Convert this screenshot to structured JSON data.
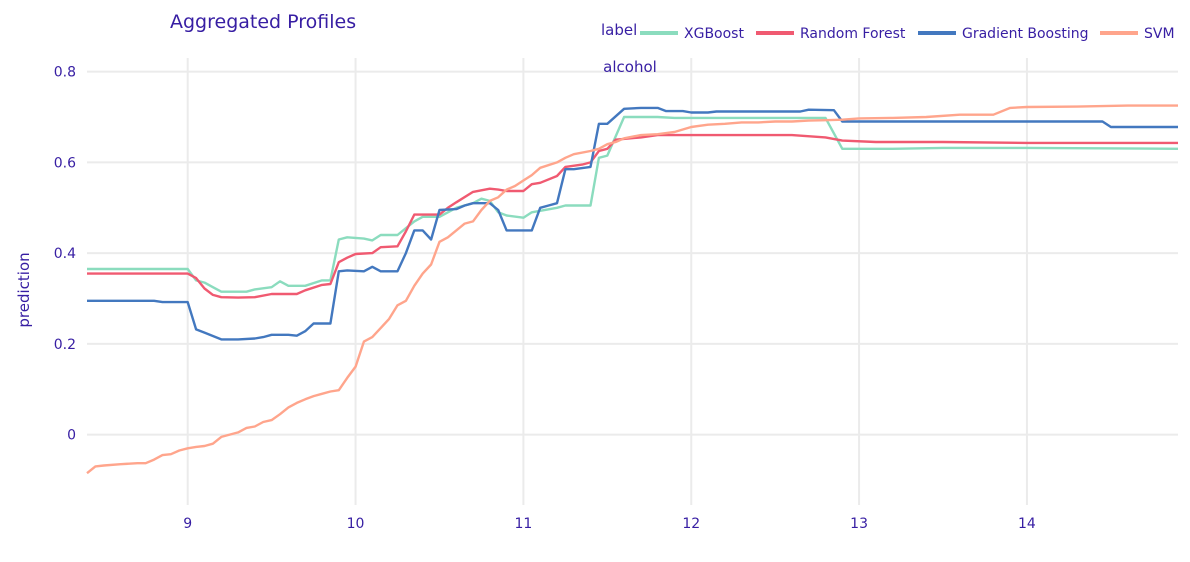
{
  "chart_data": {
    "type": "line",
    "title": "Aggregated Profiles",
    "facet_label": "alcohol",
    "xlabel": "",
    "ylabel": "prediction",
    "xlim": [
      8.4,
      14.9
    ],
    "ylim": [
      -0.155,
      0.83
    ],
    "x_ticks": [
      9,
      10,
      11,
      12,
      13,
      14
    ],
    "x_tick_labels": [
      "9",
      "10",
      "11",
      "12",
      "13",
      "14"
    ],
    "y_ticks": [
      0,
      0.2,
      0.4,
      0.6,
      0.8
    ],
    "y_tick_labels": [
      "0",
      "0.2",
      "0.4",
      "0.6",
      "0.8"
    ],
    "grid": true,
    "legend": {
      "title": "label",
      "placement": "top-right",
      "orientation": "horizontal"
    },
    "series": [
      {
        "name": "XGBoost",
        "color": "#8bdcbe",
        "points": [
          [
            8.4,
            0.365
          ],
          [
            8.8,
            0.365
          ],
          [
            9.0,
            0.365
          ],
          [
            9.05,
            0.34
          ],
          [
            9.1,
            0.335
          ],
          [
            9.15,
            0.325
          ],
          [
            9.2,
            0.315
          ],
          [
            9.3,
            0.315
          ],
          [
            9.35,
            0.315
          ],
          [
            9.4,
            0.32
          ],
          [
            9.5,
            0.325
          ],
          [
            9.55,
            0.338
          ],
          [
            9.6,
            0.328
          ],
          [
            9.7,
            0.328
          ],
          [
            9.8,
            0.34
          ],
          [
            9.85,
            0.34
          ],
          [
            9.9,
            0.43
          ],
          [
            9.95,
            0.435
          ],
          [
            10.05,
            0.432
          ],
          [
            10.1,
            0.428
          ],
          [
            10.15,
            0.44
          ],
          [
            10.25,
            0.44
          ],
          [
            10.3,
            0.455
          ],
          [
            10.35,
            0.47
          ],
          [
            10.4,
            0.48
          ],
          [
            10.5,
            0.48
          ],
          [
            10.55,
            0.49
          ],
          [
            10.6,
            0.5
          ],
          [
            10.7,
            0.51
          ],
          [
            10.75,
            0.52
          ],
          [
            10.8,
            0.515
          ],
          [
            10.85,
            0.49
          ],
          [
            10.9,
            0.483
          ],
          [
            11.0,
            0.478
          ],
          [
            11.05,
            0.49
          ],
          [
            11.2,
            0.5
          ],
          [
            11.25,
            0.505
          ],
          [
            11.3,
            0.505
          ],
          [
            11.4,
            0.505
          ],
          [
            11.45,
            0.61
          ],
          [
            11.5,
            0.615
          ],
          [
            11.6,
            0.7
          ],
          [
            11.8,
            0.7
          ],
          [
            11.9,
            0.698
          ],
          [
            12.2,
            0.698
          ],
          [
            12.8,
            0.698
          ],
          [
            12.9,
            0.63
          ],
          [
            13.2,
            0.63
          ],
          [
            13.5,
            0.632
          ],
          [
            14.0,
            0.632
          ],
          [
            14.9,
            0.63
          ]
        ]
      },
      {
        "name": "Random Forest",
        "color": "#f05a71",
        "points": [
          [
            8.4,
            0.355
          ],
          [
            9.0,
            0.355
          ],
          [
            9.05,
            0.345
          ],
          [
            9.1,
            0.322
          ],
          [
            9.15,
            0.308
          ],
          [
            9.2,
            0.303
          ],
          [
            9.3,
            0.302
          ],
          [
            9.4,
            0.303
          ],
          [
            9.5,
            0.31
          ],
          [
            9.6,
            0.31
          ],
          [
            9.65,
            0.31
          ],
          [
            9.7,
            0.318
          ],
          [
            9.8,
            0.33
          ],
          [
            9.85,
            0.332
          ],
          [
            9.9,
            0.38
          ],
          [
            9.95,
            0.39
          ],
          [
            10.0,
            0.398
          ],
          [
            10.1,
            0.4
          ],
          [
            10.15,
            0.413
          ],
          [
            10.25,
            0.415
          ],
          [
            10.3,
            0.448
          ],
          [
            10.35,
            0.485
          ],
          [
            10.5,
            0.485
          ],
          [
            10.55,
            0.5
          ],
          [
            10.6,
            0.512
          ],
          [
            10.7,
            0.535
          ],
          [
            10.8,
            0.542
          ],
          [
            10.85,
            0.54
          ],
          [
            10.9,
            0.537
          ],
          [
            11.0,
            0.537
          ],
          [
            11.05,
            0.552
          ],
          [
            11.1,
            0.555
          ],
          [
            11.2,
            0.57
          ],
          [
            11.25,
            0.59
          ],
          [
            11.35,
            0.595
          ],
          [
            11.4,
            0.6
          ],
          [
            11.45,
            0.625
          ],
          [
            11.5,
            0.63
          ],
          [
            11.55,
            0.65
          ],
          [
            11.7,
            0.655
          ],
          [
            11.8,
            0.66
          ],
          [
            12.0,
            0.66
          ],
          [
            12.6,
            0.66
          ],
          [
            12.8,
            0.655
          ],
          [
            12.9,
            0.648
          ],
          [
            13.1,
            0.645
          ],
          [
            13.5,
            0.645
          ],
          [
            14.0,
            0.643
          ],
          [
            14.9,
            0.643
          ]
        ]
      },
      {
        "name": "Gradient Boosting",
        "color": "#4378bf",
        "points": [
          [
            8.4,
            0.295
          ],
          [
            8.8,
            0.295
          ],
          [
            8.85,
            0.292
          ],
          [
            9.0,
            0.292
          ],
          [
            9.05,
            0.232
          ],
          [
            9.1,
            0.225
          ],
          [
            9.2,
            0.21
          ],
          [
            9.3,
            0.21
          ],
          [
            9.4,
            0.212
          ],
          [
            9.45,
            0.215
          ],
          [
            9.5,
            0.22
          ],
          [
            9.6,
            0.22
          ],
          [
            9.65,
            0.218
          ],
          [
            9.7,
            0.228
          ],
          [
            9.75,
            0.245
          ],
          [
            9.85,
            0.245
          ],
          [
            9.9,
            0.36
          ],
          [
            9.95,
            0.362
          ],
          [
            10.05,
            0.36
          ],
          [
            10.1,
            0.37
          ],
          [
            10.15,
            0.36
          ],
          [
            10.25,
            0.36
          ],
          [
            10.3,
            0.4
          ],
          [
            10.35,
            0.45
          ],
          [
            10.4,
            0.45
          ],
          [
            10.45,
            0.43
          ],
          [
            10.5,
            0.495
          ],
          [
            10.6,
            0.497
          ],
          [
            10.65,
            0.505
          ],
          [
            10.7,
            0.51
          ],
          [
            10.8,
            0.51
          ],
          [
            10.85,
            0.495
          ],
          [
            10.9,
            0.45
          ],
          [
            11.05,
            0.45
          ],
          [
            11.1,
            0.5
          ],
          [
            11.15,
            0.505
          ],
          [
            11.2,
            0.51
          ],
          [
            11.25,
            0.585
          ],
          [
            11.3,
            0.585
          ],
          [
            11.4,
            0.59
          ],
          [
            11.45,
            0.685
          ],
          [
            11.5,
            0.685
          ],
          [
            11.6,
            0.718
          ],
          [
            11.7,
            0.72
          ],
          [
            11.8,
            0.72
          ],
          [
            11.85,
            0.713
          ],
          [
            11.95,
            0.713
          ],
          [
            12.0,
            0.71
          ],
          [
            12.1,
            0.71
          ],
          [
            12.15,
            0.712
          ],
          [
            12.6,
            0.712
          ],
          [
            12.65,
            0.712
          ],
          [
            12.7,
            0.716
          ],
          [
            12.85,
            0.715
          ],
          [
            12.9,
            0.69
          ],
          [
            13.2,
            0.69
          ],
          [
            14.0,
            0.69
          ],
          [
            14.45,
            0.69
          ],
          [
            14.5,
            0.678
          ],
          [
            14.9,
            0.678
          ]
        ]
      },
      {
        "name": "SVM",
        "color": "#ffa58c",
        "points": [
          [
            8.4,
            -0.085
          ],
          [
            8.45,
            -0.07
          ],
          [
            8.5,
            -0.068
          ],
          [
            8.6,
            -0.065
          ],
          [
            8.7,
            -0.063
          ],
          [
            8.75,
            -0.063
          ],
          [
            8.8,
            -0.055
          ],
          [
            8.85,
            -0.045
          ],
          [
            8.9,
            -0.043
          ],
          [
            8.95,
            -0.035
          ],
          [
            9.0,
            -0.03
          ],
          [
            9.05,
            -0.027
          ],
          [
            9.1,
            -0.025
          ],
          [
            9.15,
            -0.02
          ],
          [
            9.2,
            -0.005
          ],
          [
            9.3,
            0.005
          ],
          [
            9.35,
            0.015
          ],
          [
            9.4,
            0.018
          ],
          [
            9.45,
            0.028
          ],
          [
            9.5,
            0.032
          ],
          [
            9.55,
            0.045
          ],
          [
            9.6,
            0.06
          ],
          [
            9.65,
            0.07
          ],
          [
            9.7,
            0.078
          ],
          [
            9.75,
            0.085
          ],
          [
            9.8,
            0.09
          ],
          [
            9.85,
            0.095
          ],
          [
            9.9,
            0.098
          ],
          [
            9.95,
            0.125
          ],
          [
            10.0,
            0.15
          ],
          [
            10.05,
            0.205
          ],
          [
            10.1,
            0.215
          ],
          [
            10.2,
            0.255
          ],
          [
            10.25,
            0.285
          ],
          [
            10.3,
            0.295
          ],
          [
            10.35,
            0.328
          ],
          [
            10.4,
            0.355
          ],
          [
            10.45,
            0.375
          ],
          [
            10.5,
            0.425
          ],
          [
            10.55,
            0.435
          ],
          [
            10.65,
            0.465
          ],
          [
            10.7,
            0.47
          ],
          [
            10.75,
            0.495
          ],
          [
            10.8,
            0.515
          ],
          [
            10.85,
            0.523
          ],
          [
            10.9,
            0.54
          ],
          [
            10.95,
            0.548
          ],
          [
            11.0,
            0.56
          ],
          [
            11.05,
            0.572
          ],
          [
            11.1,
            0.588
          ],
          [
            11.2,
            0.6
          ],
          [
            11.25,
            0.61
          ],
          [
            11.3,
            0.618
          ],
          [
            11.4,
            0.625
          ],
          [
            11.45,
            0.63
          ],
          [
            11.5,
            0.64
          ],
          [
            11.55,
            0.645
          ],
          [
            11.6,
            0.653
          ],
          [
            11.7,
            0.66
          ],
          [
            11.8,
            0.662
          ],
          [
            11.9,
            0.667
          ],
          [
            12.0,
            0.678
          ],
          [
            12.1,
            0.683
          ],
          [
            12.2,
            0.685
          ],
          [
            12.3,
            0.688
          ],
          [
            12.4,
            0.688
          ],
          [
            12.5,
            0.69
          ],
          [
            12.6,
            0.69
          ],
          [
            12.7,
            0.692
          ],
          [
            12.8,
            0.693
          ],
          [
            12.9,
            0.694
          ],
          [
            13.0,
            0.697
          ],
          [
            13.2,
            0.698
          ],
          [
            13.4,
            0.7
          ],
          [
            13.6,
            0.705
          ],
          [
            13.8,
            0.705
          ],
          [
            13.9,
            0.72
          ],
          [
            14.0,
            0.722
          ],
          [
            14.3,
            0.723
          ],
          [
            14.6,
            0.725
          ],
          [
            14.9,
            0.725
          ]
        ]
      }
    ]
  }
}
